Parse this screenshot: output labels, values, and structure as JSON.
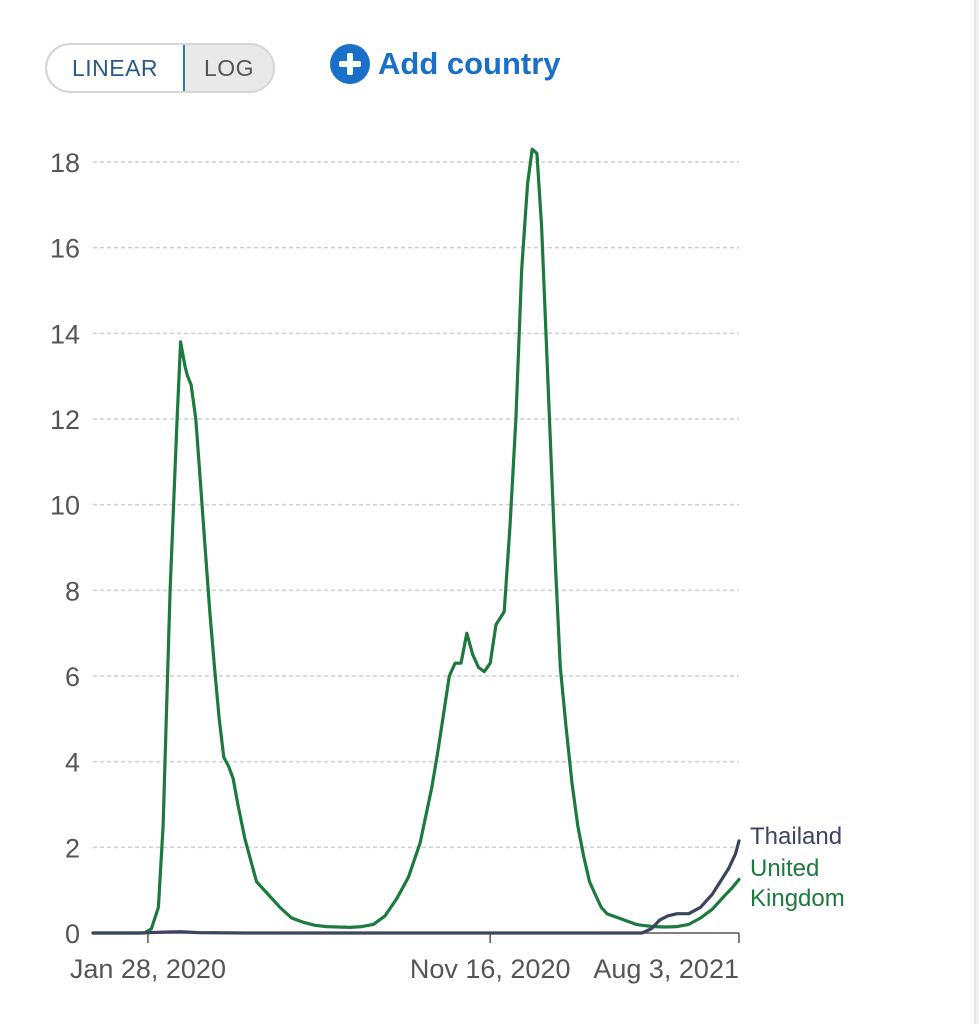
{
  "controls": {
    "scale_options": [
      "LINEAR",
      "LOG"
    ],
    "active_scale": "LINEAR",
    "add_country_label": "Add country"
  },
  "chart_data": {
    "type": "line",
    "title": "",
    "xlabel": "",
    "ylabel": "",
    "ylim": [
      0,
      18
    ],
    "yticks": [
      0,
      2,
      4,
      6,
      8,
      10,
      12,
      14,
      16,
      18
    ],
    "xticks": [
      "Jan 28, 2020",
      "Nov 16, 2020",
      "Aug 3, 2021"
    ],
    "x_range_days": [
      0,
      553
    ],
    "x_tick_days": [
      47,
      340,
      553
    ],
    "grid": true,
    "series": [
      {
        "name": "Thailand",
        "color": "#3b4560",
        "days": [
          0,
          40,
          60,
          75,
          90,
          130,
          200,
          300,
          400,
          470,
          478,
          485,
          492,
          500,
          510,
          520,
          530,
          537,
          544,
          550,
          553
        ],
        "values": [
          0,
          0,
          0.02,
          0.03,
          0.01,
          0,
          0,
          0,
          0,
          0,
          0.1,
          0.3,
          0.4,
          0.45,
          0.45,
          0.6,
          0.9,
          1.2,
          1.5,
          1.85,
          2.15
        ]
      },
      {
        "name": "United Kingdom",
        "label_lines": [
          "United",
          "Kingdom"
        ],
        "color": "#1d7a3f",
        "days": [
          0,
          44,
          50,
          56,
          60,
          66,
          72,
          75,
          77,
          79,
          81,
          84,
          88,
          92,
          96,
          100,
          104,
          108,
          112,
          116,
          120,
          124,
          130,
          140,
          150,
          160,
          170,
          180,
          190,
          200,
          210,
          220,
          230,
          240,
          250,
          260,
          270,
          280,
          290,
          295,
          300,
          305,
          310,
          315,
          320,
          325,
          330,
          335,
          340,
          345,
          352,
          357,
          362,
          367,
          372,
          376,
          380,
          384,
          387,
          390,
          393,
          396,
          400,
          405,
          410,
          415,
          420,
          425,
          430,
          435,
          440,
          445,
          450,
          455,
          460,
          465,
          470,
          480,
          490,
          500,
          510,
          520,
          530,
          540,
          547,
          553
        ],
        "values": [
          0,
          0,
          0.1,
          0.6,
          2.5,
          8,
          12,
          13.8,
          13.5,
          13.2,
          13.0,
          12.8,
          12.0,
          10.5,
          9.0,
          7.5,
          6.2,
          5.0,
          4.1,
          3.9,
          3.6,
          3.0,
          2.2,
          1.2,
          0.9,
          0.6,
          0.35,
          0.25,
          0.18,
          0.15,
          0.14,
          0.13,
          0.15,
          0.2,
          0.4,
          0.8,
          1.3,
          2.1,
          3.4,
          4.2,
          5.1,
          6.0,
          6.3,
          6.3,
          7.0,
          6.5,
          6.2,
          6.1,
          6.3,
          7.2,
          7.5,
          9.5,
          12.0,
          15.5,
          17.5,
          18.3,
          18.2,
          16.5,
          14.5,
          12.5,
          10.5,
          8.5,
          6.2,
          4.8,
          3.5,
          2.5,
          1.8,
          1.2,
          0.9,
          0.6,
          0.45,
          0.4,
          0.35,
          0.3,
          0.25,
          0.2,
          0.18,
          0.15,
          0.14,
          0.15,
          0.2,
          0.35,
          0.55,
          0.85,
          1.05,
          1.25
        ]
      }
    ]
  }
}
